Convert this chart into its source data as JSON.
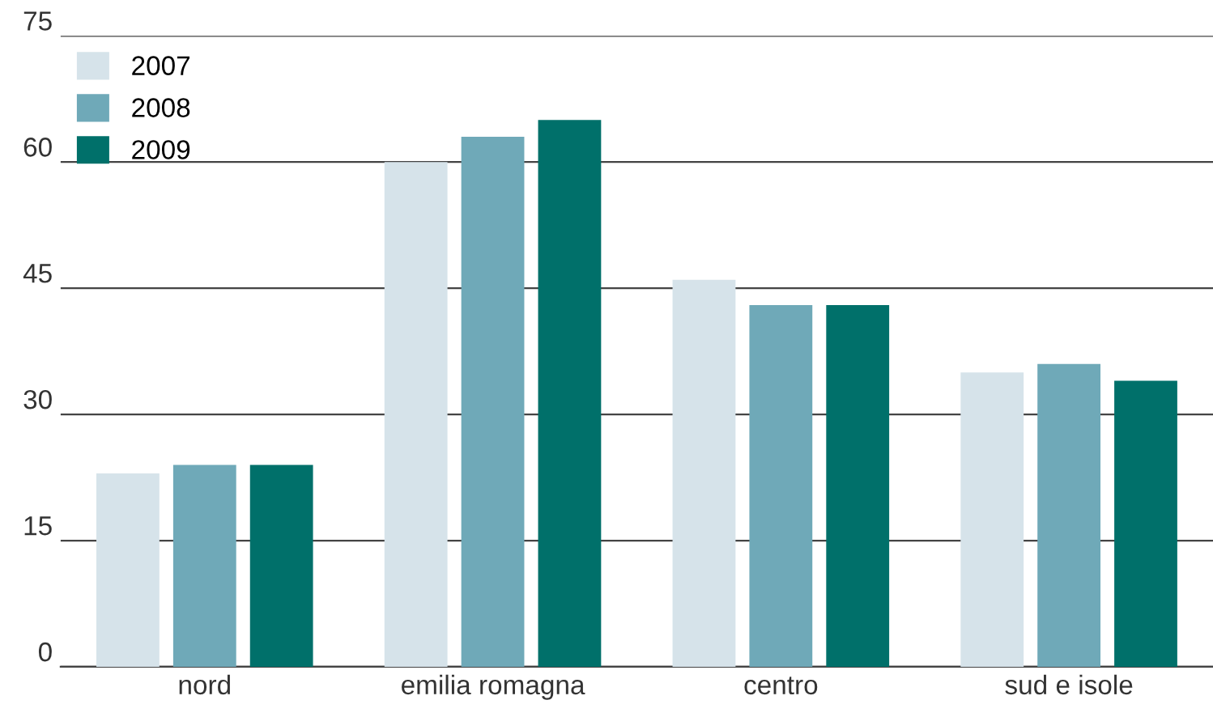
{
  "chart_data": {
    "type": "bar",
    "categories": [
      "nord",
      "emilia romagna",
      "centro",
      "sud e isole"
    ],
    "series": [
      {
        "name": "2007",
        "color": "#d6e3ea",
        "values": [
          23,
          60,
          46,
          35
        ]
      },
      {
        "name": "2008",
        "color": "#6fa9b8",
        "values": [
          24,
          63,
          43,
          36
        ]
      },
      {
        "name": "2009",
        "color": "#00706a",
        "values": [
          24,
          65,
          43,
          34
        ]
      }
    ],
    "ylim": [
      0,
      75
    ],
    "yticks": [
      0,
      15,
      30,
      45,
      60,
      75
    ],
    "grid": "y",
    "legend": "top left"
  }
}
